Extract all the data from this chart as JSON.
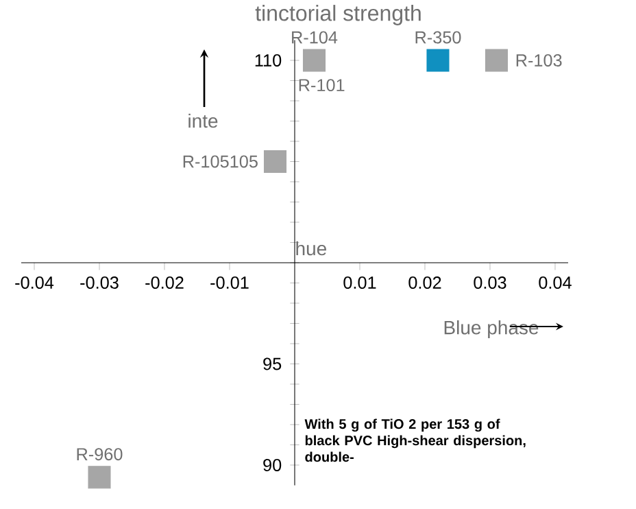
{
  "chart_data": {
    "type": "scatter",
    "title": "tinctorial strength",
    "ylabel": "inte",
    "x": [
      0.003,
      0.031,
      0.022,
      -0.003,
      -0.03
    ],
    "values": [
      110,
      110,
      110,
      105,
      89.4
    ],
    "colors": [
      "#a6a6a6",
      "#a6a6a6",
      "#1090c0",
      "#a6a6a6",
      "#a6a6a6"
    ],
    "marker": "square",
    "grid": false,
    "xlim": [
      -0.042,
      0.042
    ],
    "xticks": [
      -0.04,
      -0.03,
      -0.02,
      -0.01,
      {
        "value": 0,
        "label": null
      },
      0.01,
      0.02,
      0.03,
      0.04
    ],
    "ylim": [
      89,
      111
    ],
    "yticks": [
      90,
      {
        "value": 91,
        "label": null
      },
      {
        "value": 92,
        "label": null
      },
      {
        "value": 93,
        "label": null
      },
      {
        "value": 94,
        "label": null
      },
      95,
      {
        "value": 96,
        "label": null
      },
      {
        "value": 97,
        "label": null
      },
      {
        "value": 98,
        "label": null
      },
      {
        "value": 99,
        "label": null
      },
      {
        "value": 100,
        "label": null
      },
      {
        "value": 101,
        "label": null
      },
      {
        "value": 102,
        "label": null
      },
      {
        "value": 103,
        "label": null
      },
      {
        "value": 104,
        "label": null
      },
      {
        "value": 105,
        "label": null
      },
      {
        "value": 106,
        "label": null
      },
      {
        "value": 107,
        "label": null
      },
      {
        "value": 108,
        "label": null
      },
      {
        "value": 109,
        "label": null
      },
      110
    ],
    "annotations": [
      {
        "text": "R-104",
        "x": 0.003,
        "y": 110
      },
      {
        "text": "R-101",
        "x": 0.003,
        "y": 110
      },
      {
        "text": "R-350",
        "x": 0.022,
        "y": 110
      },
      {
        "text": "R-103",
        "x": 0.031,
        "y": 110
      },
      {
        "text": "R-105105",
        "x": -0.003,
        "y": 105
      },
      {
        "text": "R-960",
        "x": -0.03,
        "y": 89.4
      },
      "hue",
      "Blue phase",
      "With 5 g of TiO 2 per 153 g of black PVC High-shear dispersion, double-"
    ]
  }
}
